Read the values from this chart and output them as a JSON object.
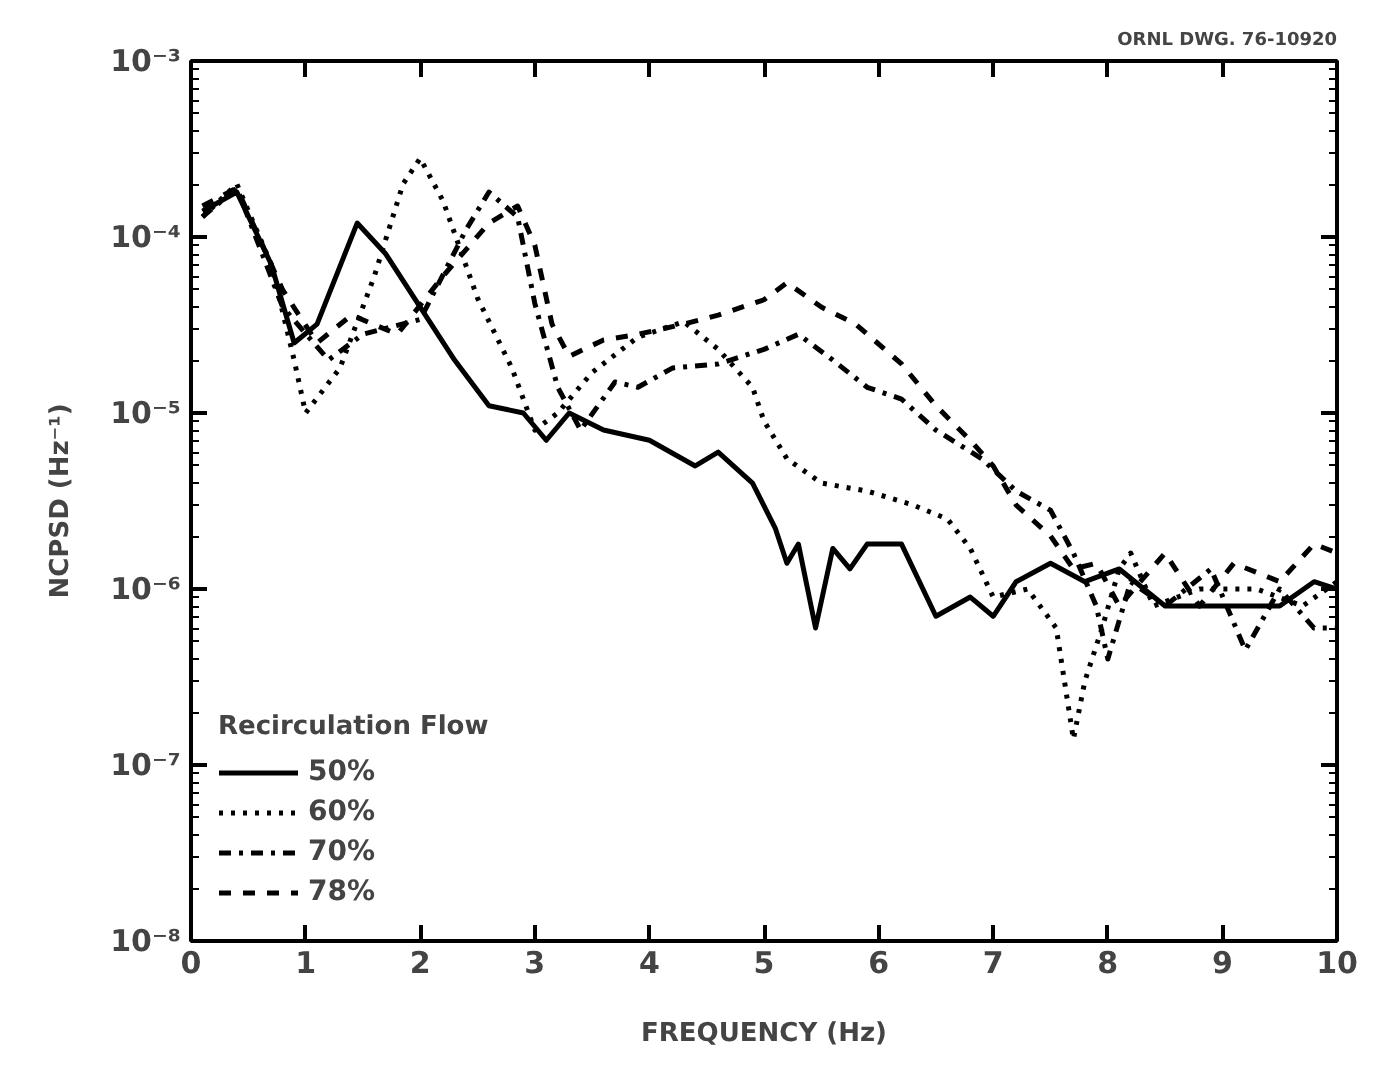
{
  "chart_data": {
    "type": "line",
    "xlabel": "FREQUENCY (Hz)",
    "ylabel": "NCPSD (Hz⁻¹)",
    "legend_title": "Recirculation Flow",
    "legend": "bottom left",
    "grid": false,
    "log": "y",
    "marker": "none",
    "annotations": [
      "ORNL DWG. 76-10920"
    ],
    "xlim": [
      0,
      10
    ],
    "xticks": [
      0,
      1,
      2,
      3,
      4,
      5,
      6,
      7,
      8,
      9,
      10
    ],
    "ylim": [
      1e-08,
      0.001
    ],
    "yticks": [
      {
        "value": 1e-08,
        "label": "10⁻⁸"
      },
      {
        "value": 1e-07,
        "label": "10⁻⁷"
      },
      {
        "value": 1e-06,
        "label": "10⁻⁶"
      },
      {
        "value": 1e-05,
        "label": "10⁻⁵"
      },
      {
        "value": 0.0001,
        "label": "10⁻⁴"
      },
      {
        "value": 0.001,
        "label": "10⁻³"
      }
    ],
    "series": [
      {
        "name": "50%",
        "color": "#000000",
        "line_style": "solid",
        "x": [
          0.1,
          0.4,
          0.7,
          0.9,
          1.1,
          1.45,
          1.7,
          2.0,
          2.3,
          2.6,
          2.9,
          3.1,
          3.3,
          3.6,
          4.0,
          4.4,
          4.6,
          4.9,
          5.1,
          5.2,
          5.3,
          5.45,
          5.6,
          5.75,
          5.9,
          6.2,
          6.5,
          6.8,
          7.0,
          7.2,
          7.5,
          7.8,
          8.1,
          8.5,
          9.0,
          9.5,
          9.8,
          10
        ],
        "values": [
          0.00014,
          0.00018,
          7e-05,
          2.5e-05,
          3.2e-05,
          0.00012,
          8e-05,
          4e-05,
          2e-05,
          1.1e-05,
          1e-05,
          7e-06,
          1e-05,
          8e-06,
          7e-06,
          5e-06,
          6e-06,
          4e-06,
          2.2e-06,
          1.4e-06,
          1.8e-06,
          6e-07,
          1.7e-06,
          1.3e-06,
          1.8e-06,
          1.8e-06,
          7e-07,
          9e-07,
          7e-07,
          1.1e-06,
          1.4e-06,
          1.1e-06,
          1.3e-06,
          8e-07,
          8e-07,
          8e-07,
          1.1e-06,
          1e-06
        ]
      },
      {
        "name": "60%",
        "color": "#000000",
        "line_style": "dotted",
        "x": [
          0.1,
          0.4,
          0.7,
          0.9,
          1.0,
          1.3,
          1.6,
          1.85,
          2.0,
          2.2,
          2.5,
          2.8,
          3.0,
          3.2,
          3.5,
          3.9,
          4.3,
          4.6,
          4.9,
          5.0,
          5.2,
          5.5,
          5.9,
          6.3,
          6.6,
          6.8,
          7.0,
          7.3,
          7.55,
          7.7,
          7.8,
          7.95,
          8.1,
          8.2,
          8.4,
          8.8,
          9.3,
          9.7,
          10
        ],
        "values": [
          0.00013,
          0.0002,
          7e-05,
          2e-05,
          1e-05,
          1.8e-05,
          6e-05,
          0.0002,
          0.00028,
          0.00016,
          4.5e-05,
          1.8e-05,
          8e-06,
          1e-05,
          1.7e-05,
          2.7e-05,
          3.3e-05,
          2.3e-05,
          1.4e-05,
          9e-06,
          5.5e-06,
          4e-06,
          3.6e-06,
          3e-06,
          2.5e-06,
          1.7e-06,
          9e-07,
          1e-06,
          6e-07,
          1.4e-07,
          3e-07,
          6e-07,
          1.3e-06,
          1.6e-06,
          8e-07,
          1e-06,
          1e-06,
          8e-07,
          1.1e-06
        ]
      },
      {
        "name": "70%",
        "color": "#000000",
        "line_style": "dashdot",
        "x": [
          0.1,
          0.4,
          0.8,
          1.2,
          1.5,
          2.0,
          2.4,
          2.6,
          2.85,
          3.0,
          3.2,
          3.4,
          3.7,
          3.9,
          4.2,
          4.6,
          5.0,
          5.3,
          5.6,
          5.9,
          6.2,
          6.5,
          6.9,
          7.2,
          7.5,
          7.7,
          7.9,
          8.0,
          8.2,
          8.5,
          8.9,
          9.2,
          9.5,
          9.8,
          10
        ],
        "values": [
          0.00013,
          0.00019,
          4e-05,
          2e-05,
          2.8e-05,
          3.4e-05,
          0.00011,
          0.00018,
          0.00013,
          4.2e-05,
          1.4e-05,
          8e-06,
          1.5e-05,
          1.4e-05,
          1.8e-05,
          1.9e-05,
          2.3e-05,
          2.8e-05,
          2e-05,
          1.4e-05,
          1.2e-05,
          8e-06,
          5.5e-06,
          3.6e-06,
          2.8e-06,
          1.6e-06,
          8e-07,
          4e-07,
          1.1e-06,
          8e-07,
          1.3e-06,
          4.5e-07,
          1e-06,
          6e-07,
          6e-07
        ]
      },
      {
        "name": "78%",
        "color": "#000000",
        "line_style": "dashed",
        "x": [
          0.1,
          0.4,
          0.8,
          1.1,
          1.4,
          1.8,
          2.2,
          2.6,
          2.85,
          3.0,
          3.15,
          3.3,
          3.6,
          3.9,
          4.3,
          4.6,
          5.0,
          5.2,
          5.5,
          5.8,
          6.2,
          6.5,
          6.8,
          7.0,
          7.2,
          7.5,
          7.7,
          7.9,
          8.1,
          8.5,
          8.8,
          9.1,
          9.5,
          9.8,
          10
        ],
        "values": [
          0.00015,
          0.00019,
          5e-05,
          2.5e-05,
          3.6e-05,
          2.8e-05,
          6e-05,
          0.00012,
          0.00015,
          9e-05,
          3.2e-05,
          2.1e-05,
          2.6e-05,
          2.8e-05,
          3.2e-05,
          3.6e-05,
          4.4e-05,
          5.5e-05,
          4e-05,
          3.2e-05,
          1.9e-05,
          1.1e-05,
          7e-06,
          5e-06,
          3e-06,
          2e-06,
          1.3e-06,
          1.4e-06,
          8e-07,
          1.6e-06,
          8e-07,
          1.4e-06,
          1.1e-06,
          1.8e-06,
          1.6e-06
        ]
      }
    ]
  }
}
